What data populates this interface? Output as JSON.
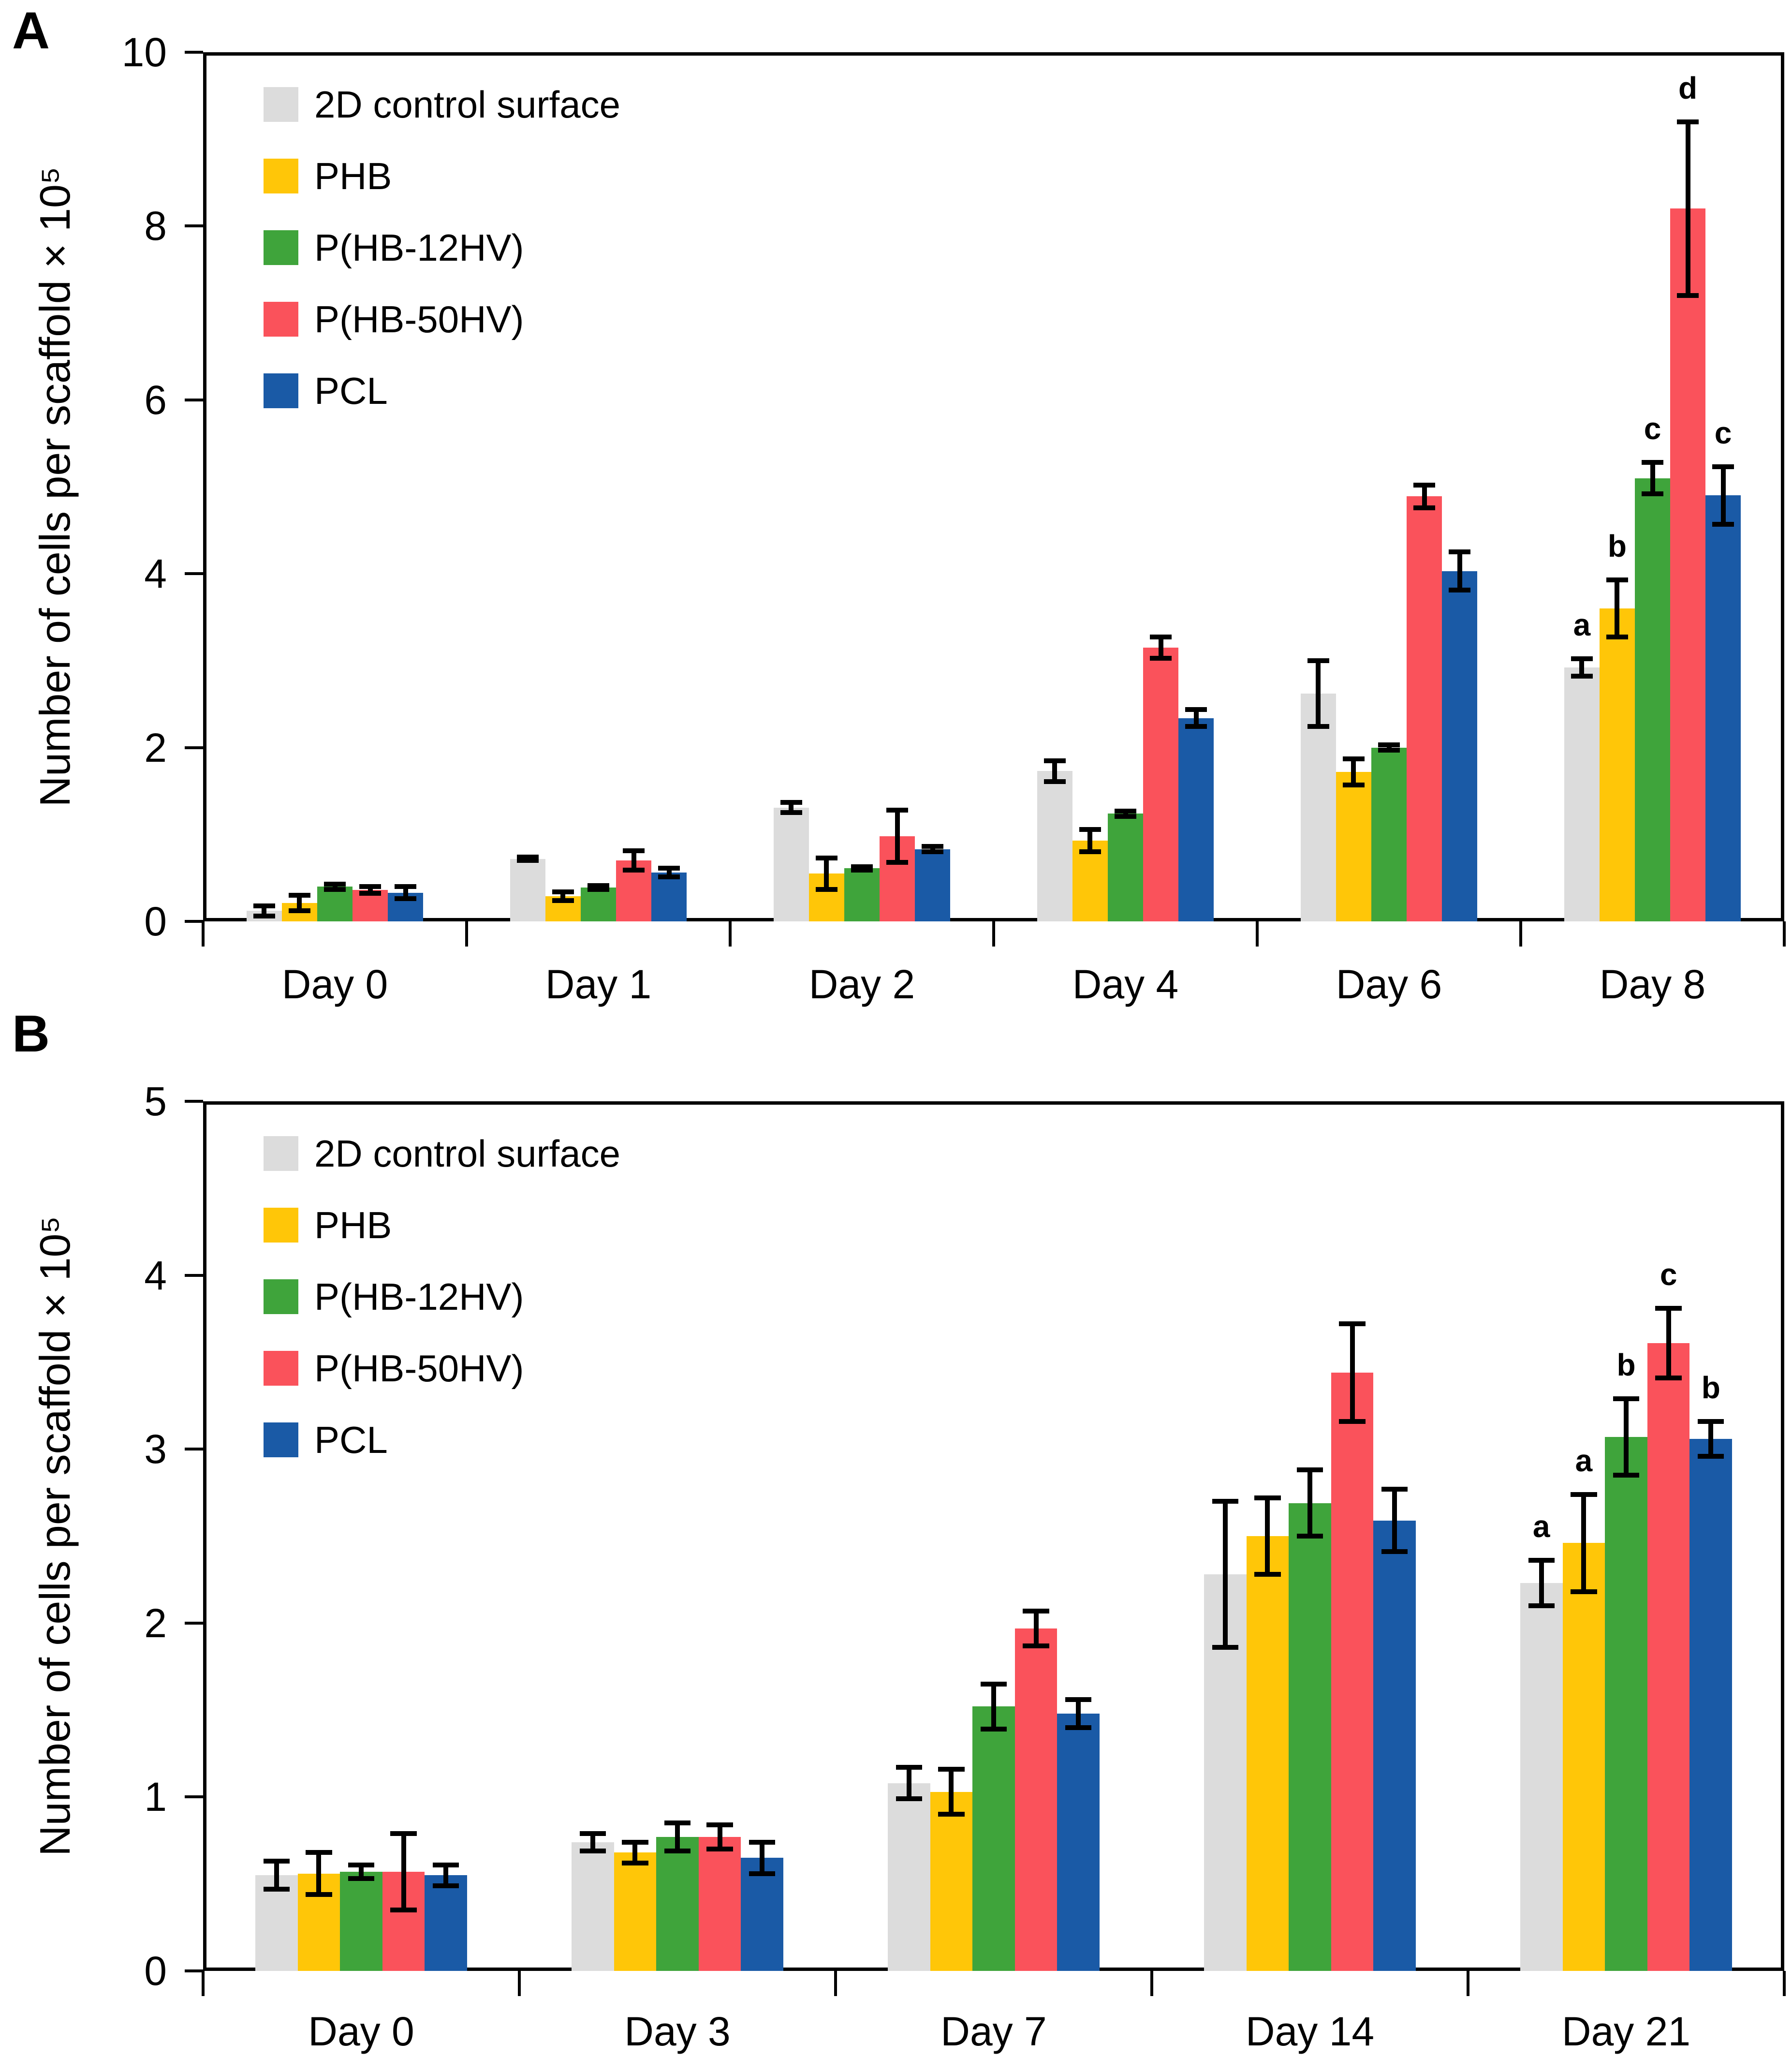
{
  "figure": {
    "background": "#ffffff",
    "axis_color": "#000000",
    "error_bar_color": "#000000",
    "text_color": "#000000"
  },
  "legend": {
    "items": [
      {
        "label": "2D control surface",
        "color": "#DCDCDC"
      },
      {
        "label": "PHB",
        "color": "#FFC608"
      },
      {
        "label": "P(HB-12HV)",
        "color": "#3FA43B"
      },
      {
        "label": "P(HB-50HV)",
        "color": "#FA525B"
      },
      {
        "label": "PCL",
        "color": "#1A5AA6"
      }
    ],
    "position": "top-left-inside"
  },
  "chart_data": [
    {
      "type": "bar",
      "panel_label": "A",
      "title": "",
      "xlabel": "",
      "ylabel": "Number of cells per scaffold × 10⁵",
      "ylim": [
        0,
        10
      ],
      "yticks": [
        0,
        2,
        4,
        6,
        8,
        10
      ],
      "grid": false,
      "legend_position": "top-left",
      "categories": [
        "Day 0",
        "Day 1",
        "Day 2",
        "Day 4",
        "Day 6",
        "Day 8"
      ],
      "series": [
        {
          "name": "2D control surface",
          "color": "#DCDCDC",
          "values": [
            0.12,
            0.72,
            1.31,
            1.73,
            2.62,
            2.92
          ],
          "errors": [
            0.06,
            0.02,
            0.06,
            0.12,
            0.38,
            0.1
          ],
          "letters": [
            null,
            null,
            null,
            null,
            null,
            "a"
          ]
        },
        {
          "name": "PHB",
          "color": "#FFC608",
          "values": [
            0.21,
            0.29,
            0.55,
            0.93,
            1.72,
            3.6
          ],
          "errors": [
            0.09,
            0.05,
            0.18,
            0.13,
            0.15,
            0.33
          ],
          "letters": [
            null,
            null,
            null,
            null,
            null,
            "b"
          ]
        },
        {
          "name": "P(HB-12HV)",
          "color": "#3FA43B",
          "values": [
            0.4,
            0.39,
            0.61,
            1.24,
            2.0,
            5.1
          ],
          "errors": [
            0.03,
            0.02,
            0.02,
            0.03,
            0.03,
            0.18
          ],
          "letters": [
            null,
            null,
            null,
            null,
            null,
            "c"
          ]
        },
        {
          "name": "P(HB-50HV)",
          "color": "#FA525B",
          "values": [
            0.36,
            0.7,
            0.98,
            3.15,
            4.89,
            8.2
          ],
          "errors": [
            0.04,
            0.11,
            0.3,
            0.12,
            0.13,
            1.0
          ],
          "letters": [
            null,
            null,
            null,
            null,
            null,
            "d"
          ]
        },
        {
          "name": "PCL",
          "color": "#1A5AA6",
          "values": [
            0.33,
            0.56,
            0.83,
            2.34,
            4.03,
            4.9
          ],
          "errors": [
            0.07,
            0.05,
            0.03,
            0.1,
            0.22,
            0.33
          ],
          "letters": [
            null,
            null,
            null,
            null,
            null,
            "c"
          ]
        }
      ]
    },
    {
      "type": "bar",
      "panel_label": "B",
      "title": "",
      "xlabel": "",
      "ylabel": "Number of cells per scaffold × 10⁵",
      "ylim": [
        0,
        5
      ],
      "yticks": [
        0,
        1,
        2,
        3,
        4,
        5
      ],
      "grid": false,
      "legend_position": "top-left",
      "categories": [
        "Day 0",
        "Day 3",
        "Day 7",
        "Day 14",
        "Day 21"
      ],
      "series": [
        {
          "name": "2D control surface",
          "color": "#DCDCDC",
          "values": [
            0.55,
            0.74,
            1.08,
            2.28,
            2.23
          ],
          "errors": [
            0.08,
            0.05,
            0.09,
            0.42,
            0.13
          ],
          "letters": [
            null,
            null,
            null,
            null,
            "a"
          ]
        },
        {
          "name": "PHB",
          "color": "#FFC608",
          "values": [
            0.56,
            0.68,
            1.03,
            2.5,
            2.46
          ],
          "errors": [
            0.12,
            0.06,
            0.13,
            0.22,
            0.28
          ],
          "letters": [
            null,
            null,
            null,
            null,
            "a"
          ]
        },
        {
          "name": "P(HB-12HV)",
          "color": "#3FA43B",
          "values": [
            0.57,
            0.77,
            1.52,
            2.69,
            3.07
          ],
          "errors": [
            0.04,
            0.08,
            0.13,
            0.19,
            0.22
          ],
          "letters": [
            null,
            null,
            null,
            null,
            "b"
          ]
        },
        {
          "name": "P(HB-50HV)",
          "color": "#FA525B",
          "values": [
            0.57,
            0.77,
            1.97,
            3.44,
            3.61
          ],
          "errors": [
            0.22,
            0.07,
            0.1,
            0.28,
            0.2
          ],
          "letters": [
            null,
            null,
            null,
            null,
            "c"
          ]
        },
        {
          "name": "PCL",
          "color": "#1A5AA6",
          "values": [
            0.55,
            0.65,
            1.48,
            2.59,
            3.06
          ],
          "errors": [
            0.06,
            0.09,
            0.08,
            0.18,
            0.1
          ],
          "letters": [
            null,
            null,
            null,
            null,
            "b"
          ]
        }
      ]
    }
  ]
}
